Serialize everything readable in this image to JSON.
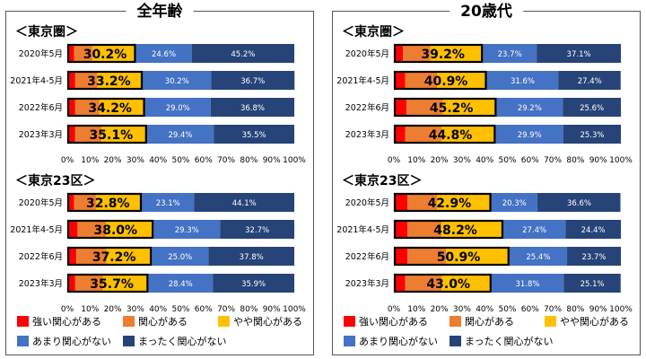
{
  "colors": {
    "very_interested": "#ff0000",
    "interested": "#ed7d31",
    "somewhat_interested": "#ffc000",
    "not_very_interested": "#4472c4",
    "not_interested": "#264478",
    "highlight_border": "#000000"
  },
  "legend": [
    {
      "label": "強い関心がある",
      "color_key": "very_interested"
    },
    {
      "label": "関心がある",
      "color_key": "interested"
    },
    {
      "label": "やや関心がある",
      "color_key": "somewhat_interested"
    },
    {
      "label": "あまり関心がない",
      "color_key": "not_very_interested"
    },
    {
      "label": "まったく関心がない",
      "color_key": "not_interested"
    }
  ],
  "panels": [
    {
      "title": "全年齢"
    },
    {
      "title": "20歳代"
    }
  ],
  "chart_data": [
    {
      "type": "bar",
      "orientation": "horizontal-stacked",
      "panel": "全年齢",
      "title": "＜東京圏＞",
      "x_ticks": [
        "0%",
        "10%",
        "20%",
        "30%",
        "40%",
        "50%",
        "60%",
        "70%",
        "80%",
        "90%",
        "100%"
      ],
      "xlim": [
        0,
        100
      ],
      "categories": [
        "2020年5月",
        "2021年4-5月",
        "2022年6月",
        "2023年3月"
      ],
      "series": [
        {
          "name": "強い関心がある",
          "values": [
            3.0,
            3.5,
            3.5,
            3.5
          ]
        },
        {
          "name": "関心がある",
          "values": [
            8.2,
            9.7,
            10.7,
            11.6
          ]
        },
        {
          "name": "やや関心がある",
          "values": [
            19.0,
            20.0,
            20.0,
            20.0
          ]
        },
        {
          "name": "あまり関心がない",
          "values": [
            24.6,
            30.2,
            29.0,
            29.4
          ]
        },
        {
          "name": "まったく関心がない",
          "values": [
            45.2,
            36.7,
            36.8,
            35.5
          ]
        }
      ],
      "highlight_labels": [
        "30.2%",
        "33.2%",
        "34.2%",
        "35.1%"
      ],
      "segment_labels": [
        [
          "24.6%",
          "45.2%"
        ],
        [
          "30.2%",
          "36.7%"
        ],
        [
          "29.0%",
          "36.8%"
        ],
        [
          "29.4%",
          "35.5%"
        ]
      ]
    },
    {
      "type": "bar",
      "orientation": "horizontal-stacked",
      "panel": "全年齢",
      "title": "＜東京23区＞",
      "x_ticks": [
        "0%",
        "10%",
        "20%",
        "30%",
        "40%",
        "50%",
        "60%",
        "70%",
        "80%",
        "90%",
        "100%"
      ],
      "xlim": [
        0,
        100
      ],
      "categories": [
        "2020年5月",
        "2021年4-5月",
        "2022年6月",
        "2023年3月"
      ],
      "series": [
        {
          "name": "強い関心がある",
          "values": [
            3.0,
            4.5,
            4.0,
            3.5
          ]
        },
        {
          "name": "関心がある",
          "values": [
            9.8,
            12.5,
            13.2,
            12.2
          ]
        },
        {
          "name": "やや関心がある",
          "values": [
            20.0,
            21.0,
            20.0,
            20.0
          ]
        },
        {
          "name": "あまり関心がない",
          "values": [
            23.1,
            29.3,
            25.0,
            28.4
          ]
        },
        {
          "name": "まったく関心がない",
          "values": [
            44.1,
            32.7,
            37.8,
            35.9
          ]
        }
      ],
      "highlight_labels": [
        "32.8%",
        "38.0%",
        "37.2%",
        "35.7%"
      ],
      "segment_labels": [
        [
          "23.1%",
          "44.1%"
        ],
        [
          "29.3%",
          "32.7%"
        ],
        [
          "25.0%",
          "37.8%"
        ],
        [
          "28.4%",
          "35.9%"
        ]
      ]
    },
    {
      "type": "bar",
      "orientation": "horizontal-stacked",
      "panel": "20歳代",
      "title": "＜東京圏＞",
      "x_ticks": [
        "0%",
        "10%",
        "20%",
        "30%",
        "40%",
        "50%",
        "60%",
        "70%",
        "80%",
        "90%",
        "100%"
      ],
      "xlim": [
        0,
        100
      ],
      "categories": [
        "2020年5月",
        "2021年4-5月",
        "2022年6月",
        "2023年3月"
      ],
      "series": [
        {
          "name": "強い関心がある",
          "values": [
            4.0,
            5.0,
            5.5,
            5.0
          ]
        },
        {
          "name": "関心がある",
          "values": [
            12.0,
            14.0,
            16.0,
            16.0
          ]
        },
        {
          "name": "やや関心がある",
          "values": [
            23.2,
            21.9,
            23.7,
            23.8
          ]
        },
        {
          "name": "あまり関心がない",
          "values": [
            23.7,
            31.6,
            29.2,
            29.9
          ]
        },
        {
          "name": "まったく関心がない",
          "values": [
            37.1,
            27.4,
            25.6,
            25.3
          ]
        }
      ],
      "highlight_labels": [
        "39.2%",
        "40.9%",
        "45.2%",
        "44.8%"
      ],
      "segment_labels": [
        [
          "23.7%",
          "37.1%"
        ],
        [
          "31.6%",
          "27.4%"
        ],
        [
          "29.2%",
          "25.6%"
        ],
        [
          "29.9%",
          "25.3%"
        ]
      ]
    },
    {
      "type": "bar",
      "orientation": "horizontal-stacked",
      "panel": "20歳代",
      "title": "＜東京23区＞",
      "x_ticks": [
        "0%",
        "10%",
        "20%",
        "30%",
        "40%",
        "50%",
        "60%",
        "70%",
        "80%",
        "90%",
        "100%"
      ],
      "xlim": [
        0,
        100
      ],
      "categories": [
        "2020年5月",
        "2021年4-5月",
        "2022年6月",
        "2023年3月"
      ],
      "series": [
        {
          "name": "強い関心がある",
          "values": [
            6.0,
            6.0,
            6.0,
            5.0
          ]
        },
        {
          "name": "関心がある",
          "values": [
            13.0,
            15.0,
            17.0,
            16.0
          ]
        },
        {
          "name": "やや関心がある",
          "values": [
            23.9,
            27.2,
            27.9,
            22.0
          ]
        },
        {
          "name": "あまり関心がない",
          "values": [
            20.3,
            27.4,
            25.4,
            31.8
          ]
        },
        {
          "name": "まったく関心がない",
          "values": [
            36.6,
            24.4,
            23.7,
            25.1
          ]
        }
      ],
      "highlight_labels": [
        "42.9%",
        "48.2%",
        "50.9%",
        "43.0%"
      ],
      "segment_labels": [
        [
          "20.3%",
          "36.6%"
        ],
        [
          "27.4%",
          "24.4%"
        ],
        [
          "25.4%",
          "23.7%"
        ],
        [
          "31.8%",
          "25.1%"
        ]
      ]
    }
  ]
}
